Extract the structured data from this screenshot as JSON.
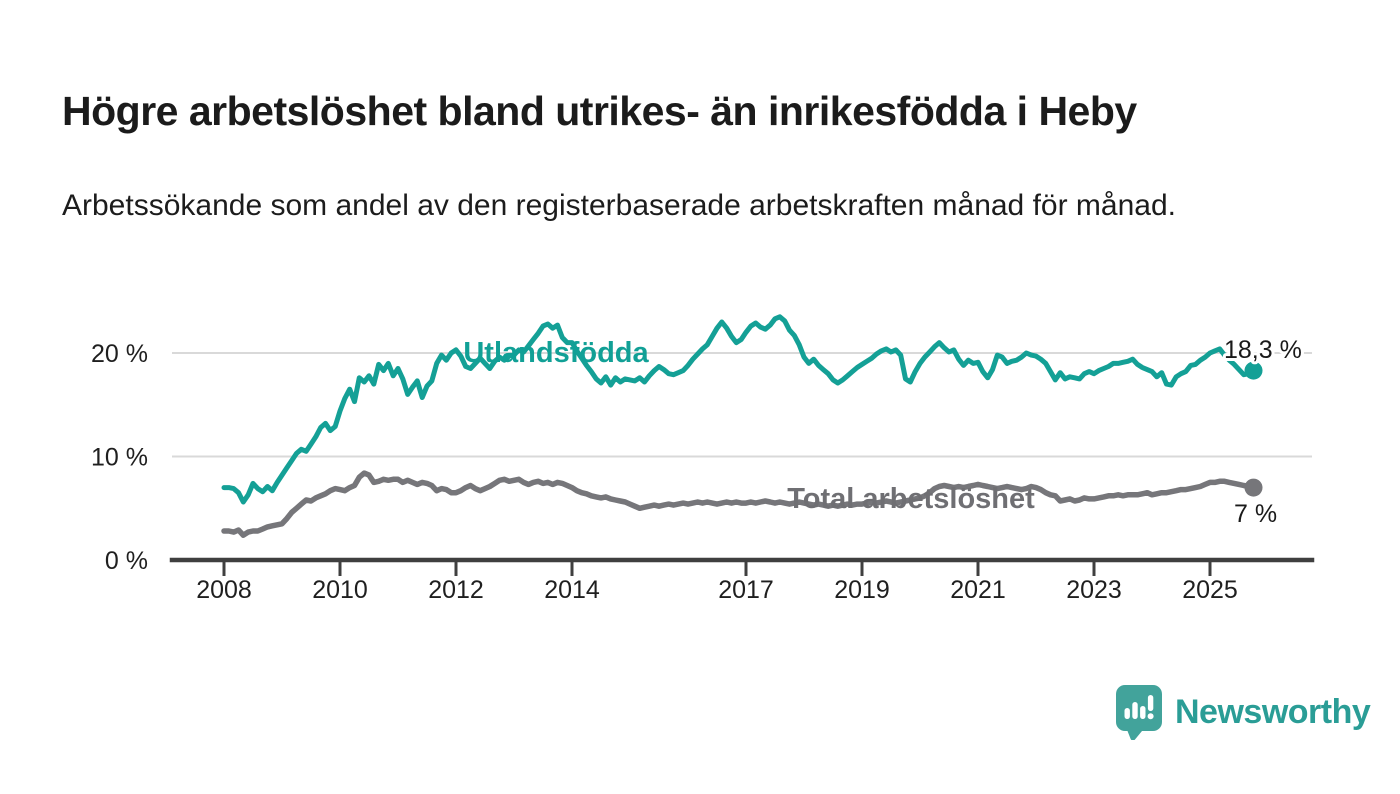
{
  "header": {
    "title": "Högre arbetslöshet bland utrikes- än inrikesfödda i Heby",
    "subtitle": "Arbetssökande som andel av den registerbaserade arbetskraften månad för månad."
  },
  "chart_data": {
    "type": "line",
    "title": "Högre arbetslöshet bland utrikes- än inrikesfödda i Heby",
    "subtitle": "Arbetssökande som andel av den registerbaserade arbetskraften månad för månad.",
    "x_unit": "monthly, from January 2008 to October 2025",
    "x_start_year": 2008,
    "points_per_year": 12,
    "ylim": [
      0,
      25
    ],
    "grid": "horizontal",
    "legend_position": "inline-labels",
    "y_ticks": [
      {
        "value": 0,
        "label": "0 %"
      },
      {
        "value": 10,
        "label": "10 %"
      },
      {
        "value": 20,
        "label": "20 %"
      }
    ],
    "x_ticks": [
      {
        "year": 2008,
        "label": "2008"
      },
      {
        "year": 2010,
        "label": "2010"
      },
      {
        "year": 2012,
        "label": "2012"
      },
      {
        "year": 2014,
        "label": "2014"
      },
      {
        "year": 2017,
        "label": "2017"
      },
      {
        "year": 2019,
        "label": "2019"
      },
      {
        "year": 2021,
        "label": "2021"
      },
      {
        "year": 2023,
        "label": "2023"
      },
      {
        "year": 2025,
        "label": "2025"
      }
    ],
    "series": [
      {
        "name": "Utlandsfödda",
        "color": "#14a096",
        "end_label": "18,3 %",
        "end_value": 18.3,
        "values": [
          7.0,
          7.0,
          6.9,
          6.5,
          5.6,
          6.3,
          7.4,
          6.9,
          6.6,
          7.1,
          6.7,
          7.5,
          8.2,
          8.9,
          9.6,
          10.3,
          10.7,
          10.5,
          11.2,
          11.9,
          12.8,
          13.2,
          12.5,
          12.9,
          14.4,
          15.6,
          16.5,
          15.3,
          17.6,
          17.2,
          17.8,
          17.0,
          18.9,
          18.3,
          19.0,
          17.8,
          18.5,
          17.5,
          16.0,
          16.7,
          17.3,
          15.7,
          16.8,
          17.3,
          19.0,
          19.8,
          19.3,
          20.0,
          20.3,
          19.7,
          18.7,
          18.5,
          19.0,
          19.5,
          19.0,
          18.5,
          19.2,
          19.6,
          19.3,
          19.7,
          19.8,
          20.3,
          20.1,
          20.7,
          21.3,
          21.9,
          22.6,
          22.8,
          22.4,
          22.7,
          21.5,
          21.0,
          21.0,
          20.2,
          19.5,
          18.8,
          18.2,
          17.5,
          17.1,
          17.7,
          16.9,
          17.6,
          17.2,
          17.5,
          17.4,
          17.3,
          17.6,
          17.2,
          17.8,
          18.3,
          18.7,
          18.4,
          18.0,
          17.9,
          18.1,
          18.3,
          18.8,
          19.4,
          19.9,
          20.4,
          20.8,
          21.6,
          22.4,
          23.0,
          22.4,
          21.6,
          21.0,
          21.3,
          22.0,
          22.6,
          22.9,
          22.5,
          22.3,
          22.7,
          23.3,
          23.5,
          23.1,
          22.2,
          21.7,
          20.8,
          19.6,
          19.0,
          19.4,
          18.8,
          18.4,
          18.0,
          17.4,
          17.1,
          17.4,
          17.8,
          18.2,
          18.6,
          18.9,
          19.2,
          19.5,
          19.9,
          20.2,
          20.4,
          20.1,
          20.3,
          19.8,
          17.5,
          17.2,
          18.2,
          19.0,
          19.6,
          20.1,
          20.6,
          21.0,
          20.5,
          20.1,
          20.3,
          19.4,
          18.8,
          19.3,
          19.0,
          19.1,
          18.2,
          17.6,
          18.4,
          19.8,
          19.6,
          19.0,
          19.2,
          19.3,
          19.6,
          20.0,
          19.8,
          19.7,
          19.4,
          19.0,
          18.2,
          17.4,
          18.1,
          17.5,
          17.7,
          17.6,
          17.5,
          18.0,
          18.2,
          18.0,
          18.3,
          18.5,
          18.7,
          19.0,
          19.0,
          19.1,
          19.2,
          19.4,
          18.9,
          18.6,
          18.4,
          18.2,
          17.7,
          18.1,
          17.0,
          16.9,
          17.7,
          18.0,
          18.2,
          18.8,
          18.9,
          19.3,
          19.6,
          20.0,
          20.2,
          20.4,
          19.8,
          19.3,
          18.9,
          18.4,
          17.9,
          18.0,
          18.3
        ]
      },
      {
        "name": "Total arbetslöshet",
        "color": "#76767a",
        "end_label": "7 %",
        "end_value": 7.0,
        "values": [
          2.8,
          2.8,
          2.7,
          2.9,
          2.4,
          2.7,
          2.8,
          2.8,
          3.0,
          3.2,
          3.3,
          3.4,
          3.5,
          4.0,
          4.6,
          5.0,
          5.4,
          5.8,
          5.7,
          6.0,
          6.2,
          6.4,
          6.7,
          6.9,
          6.8,
          6.7,
          7.0,
          7.2,
          8.0,
          8.4,
          8.2,
          7.5,
          7.6,
          7.8,
          7.7,
          7.8,
          7.8,
          7.5,
          7.7,
          7.5,
          7.3,
          7.5,
          7.4,
          7.2,
          6.7,
          6.9,
          6.8,
          6.5,
          6.5,
          6.7,
          7.0,
          7.2,
          6.9,
          6.7,
          6.9,
          7.1,
          7.4,
          7.7,
          7.8,
          7.6,
          7.7,
          7.8,
          7.5,
          7.3,
          7.5,
          7.6,
          7.4,
          7.5,
          7.3,
          7.5,
          7.4,
          7.2,
          7.0,
          6.7,
          6.5,
          6.4,
          6.2,
          6.1,
          6.0,
          6.1,
          5.9,
          5.8,
          5.7,
          5.6,
          5.4,
          5.2,
          5.0,
          5.1,
          5.2,
          5.3,
          5.2,
          5.3,
          5.4,
          5.3,
          5.4,
          5.5,
          5.4,
          5.5,
          5.6,
          5.5,
          5.6,
          5.5,
          5.4,
          5.5,
          5.6,
          5.5,
          5.6,
          5.5,
          5.5,
          5.6,
          5.5,
          5.6,
          5.7,
          5.6,
          5.5,
          5.6,
          5.5,
          5.4,
          5.5,
          5.6,
          5.5,
          5.4,
          5.3,
          5.4,
          5.3,
          5.2,
          5.3,
          5.2,
          5.3,
          5.4,
          5.3,
          5.4,
          5.4,
          5.5,
          5.6,
          5.5,
          5.6,
          5.7,
          5.6,
          5.5,
          5.6,
          5.7,
          5.8,
          5.9,
          6.0,
          6.2,
          6.5,
          6.9,
          7.1,
          7.2,
          7.1,
          7.0,
          7.1,
          7.0,
          7.1,
          7.2,
          7.3,
          7.2,
          7.1,
          7.0,
          6.9,
          7.0,
          7.1,
          7.0,
          6.9,
          6.8,
          6.9,
          7.1,
          7.0,
          6.8,
          6.5,
          6.3,
          6.2,
          5.7,
          5.8,
          5.9,
          5.7,
          5.8,
          6.0,
          5.9,
          5.9,
          6.0,
          6.1,
          6.2,
          6.2,
          6.3,
          6.2,
          6.3,
          6.3,
          6.3,
          6.4,
          6.5,
          6.3,
          6.4,
          6.5,
          6.5,
          6.6,
          6.7,
          6.8,
          6.8,
          6.9,
          7.0,
          7.1,
          7.3,
          7.5,
          7.5,
          7.6,
          7.6,
          7.5,
          7.4,
          7.3,
          7.2,
          7.1,
          7.0
        ]
      }
    ],
    "colors": {
      "axis": "#3f3f3f",
      "gridline": "#d9d9d9",
      "tick_text": "#1f1f1f",
      "title_text": "#1b1b1b"
    }
  },
  "footer": {
    "brand": "Newsworthy",
    "brand_color": "#2a9d96",
    "logo_icon": "speech-bubble-bar-chart-icon"
  }
}
